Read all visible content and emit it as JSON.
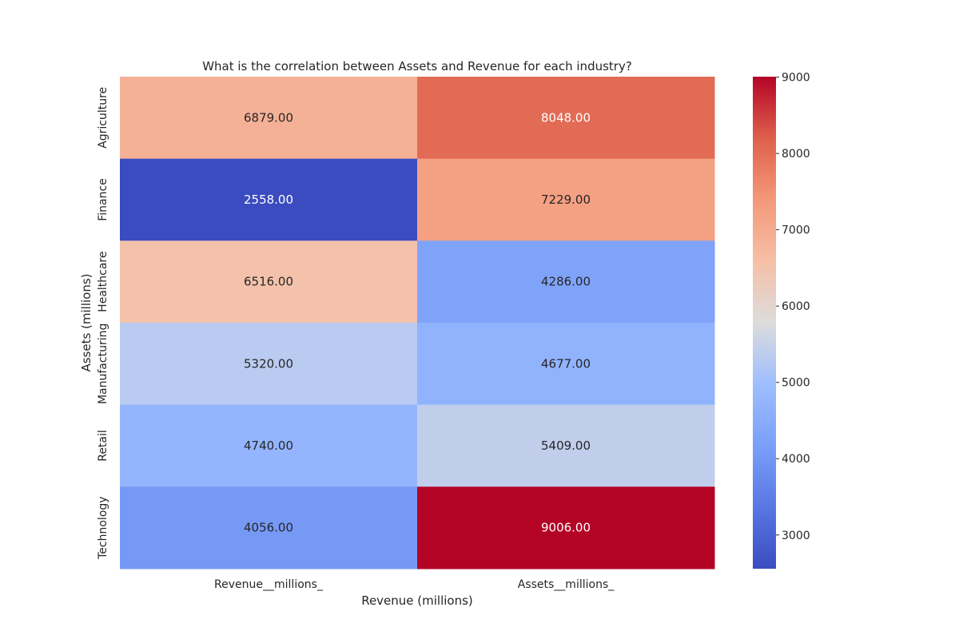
{
  "chart_data": {
    "type": "heatmap",
    "title": "What is the correlation between Assets and Revenue for each industry?",
    "xlabel": "Revenue (millions)",
    "ylabel": "Assets (millions)",
    "columns": [
      "Revenue__millions_",
      "Assets__millions_"
    ],
    "rows": [
      "Agriculture",
      "Finance",
      "Healthcare",
      "Manufacturing",
      "Retail",
      "Technology"
    ],
    "values": [
      [
        6879.0,
        8048.0
      ],
      [
        2558.0,
        7229.0
      ],
      [
        6516.0,
        4286.0
      ],
      [
        5320.0,
        4677.0
      ],
      [
        4740.0,
        5409.0
      ],
      [
        4056.0,
        9006.0
      ]
    ],
    "value_format": "2 decimals",
    "colormap": "coolwarm",
    "color_range": [
      2558,
      9006
    ],
    "colorbar_ticks": [
      3000,
      4000,
      5000,
      6000,
      7000,
      8000,
      9000
    ],
    "colorbar_tick_labels": [
      "3000",
      "4000",
      "5000",
      "6000",
      "7000",
      "8000",
      "9000"
    ],
    "grid": false,
    "colorbar_placement": "right"
  }
}
